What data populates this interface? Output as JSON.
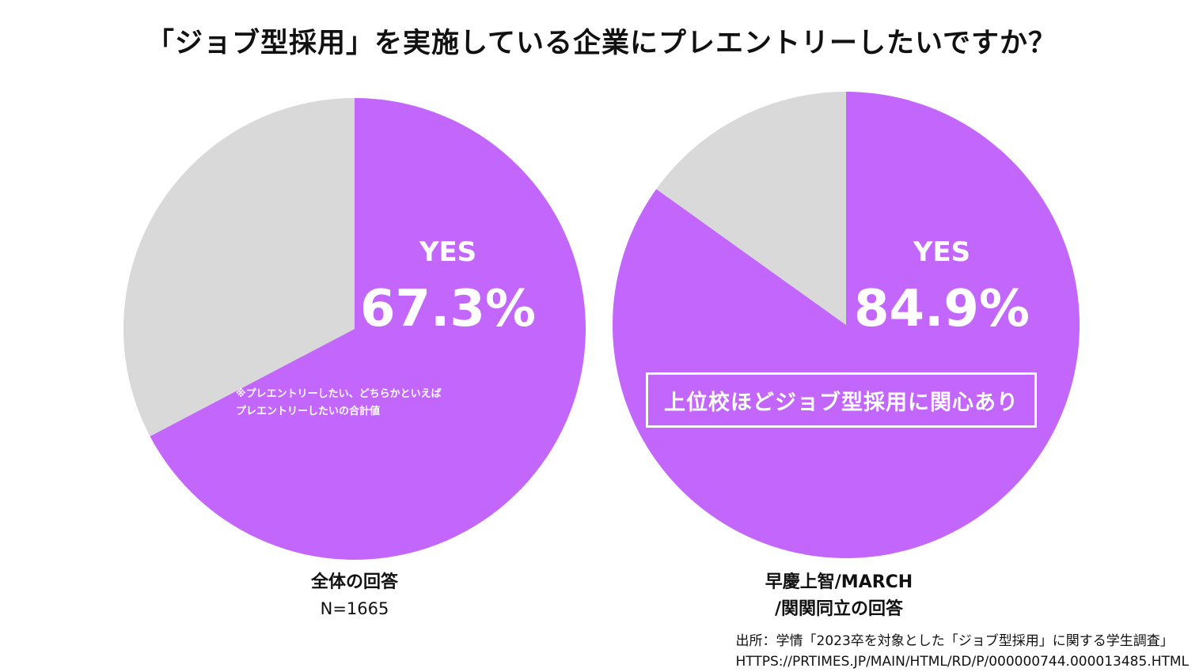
{
  "title": "「ジョブ型採用」を実施している企業にプレエントリーしたいですか？",
  "colors": {
    "yes": "#c266fc",
    "other": "#d9d9d9",
    "text": "#111111"
  },
  "chart_data": [
    {
      "type": "pie",
      "slices": [
        {
          "label": "YES",
          "value": 67.3,
          "value_text": "67.3%",
          "color": "#c266fc"
        },
        {
          "label": "",
          "value": 32.7,
          "color": "#d9d9d9"
        }
      ],
      "note": "※プレエントリーしたい、どちらかといえば\nプレエントリーしたいの合計値",
      "caption": "全体の回答",
      "sample": "N=1665"
    },
    {
      "type": "pie",
      "slices": [
        {
          "label": "YES",
          "value": 84.9,
          "value_text": "84.9%",
          "color": "#c266fc"
        },
        {
          "label": "",
          "value": 15.1,
          "color": "#d9d9d9"
        }
      ],
      "callout": "上位校ほどジョブ型採用に関心あり",
      "caption_line1": "早慶上智/MARCH",
      "caption_line2": "/関関同立の回答"
    }
  ],
  "source": {
    "line1": "出所：学情「2023卒を対象とした「ジョブ型採用」に関する学生調査」",
    "line2": "HTTPS://PRTIMES.JP/MAIN/HTML/RD/P/000000744.000013485.HTML"
  }
}
